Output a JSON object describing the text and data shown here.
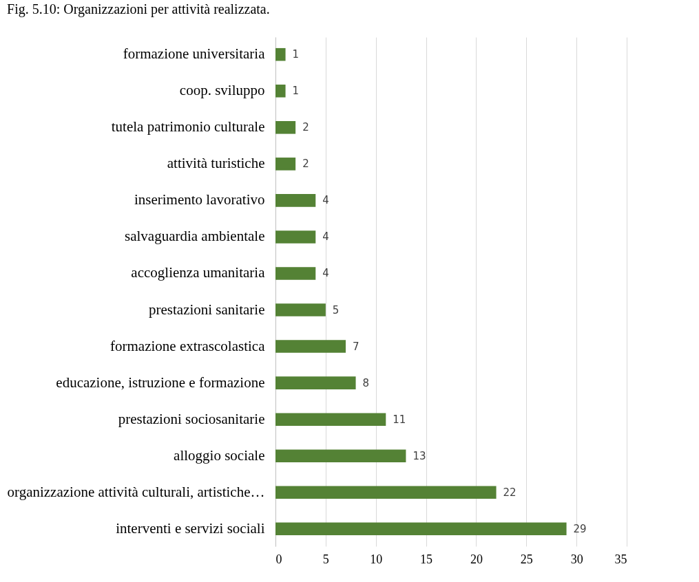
{
  "chart_data": {
    "type": "bar",
    "orientation": "horizontal",
    "title": "Fig. 5.10: Organizzazioni per attività realizzata.",
    "categories": [
      "formazione universitaria",
      "coop. sviluppo",
      "tutela patrimonio culturale",
      "attività turistiche",
      "inserimento lavorativo",
      "salvaguardia ambientale",
      "accoglienza umanitaria",
      "prestazioni sanitarie",
      "formazione extrascolastica",
      "educazione, istruzione e formazione",
      "prestazioni sociosanitarie",
      "alloggio sociale",
      "organizzazione attività culturali, artistiche…",
      "interventi e servizi sociali"
    ],
    "values": [
      1,
      1,
      2,
      2,
      4,
      4,
      4,
      5,
      7,
      8,
      11,
      13,
      22,
      29
    ],
    "color": "#548235",
    "xlim": [
      0,
      35
    ],
    "xticks": [
      0,
      5,
      10,
      15,
      20,
      25,
      30,
      35
    ],
    "grid": "x",
    "data_labels": true
  }
}
